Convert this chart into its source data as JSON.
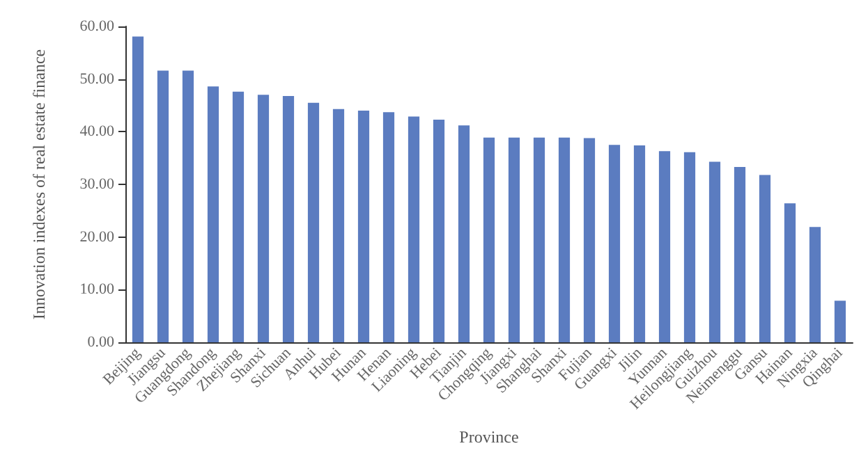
{
  "chart_data": {
    "type": "bar",
    "xlabel": "Province",
    "ylabel": "Innovation indexes of real estate finance",
    "categories": [
      "Beijing",
      "Jiangsu",
      "Guangdong",
      "Shandong",
      "Zhejiang",
      "Shanxi",
      "Sichuan",
      "Anhui",
      "Hubei",
      "Hunan",
      "Henan",
      "Liaoning",
      "Hebei",
      "Tianjin",
      "Chongqing",
      "Jiangxi",
      "Shanghai",
      "Shanxi",
      "Fujian",
      "Guangxi",
      "Jilin",
      "Yunnan",
      "Heilongjiang",
      "Guizhou",
      "Neimenggu",
      "Gansu",
      "Hainan",
      "Ningxia",
      "Qinghai"
    ],
    "values": [
      58.1,
      51.6,
      51.6,
      48.6,
      47.6,
      47.0,
      46.8,
      45.5,
      44.3,
      44.0,
      43.7,
      42.9,
      42.3,
      41.2,
      38.9,
      38.9,
      38.9,
      38.9,
      38.8,
      37.5,
      37.4,
      36.3,
      36.1,
      34.3,
      33.3,
      31.8,
      26.4,
      21.9,
      7.9
    ],
    "color": "#5b7cc0",
    "ylim": [
      0,
      60
    ],
    "yticks": [
      {
        "value": 0,
        "label": "0.00"
      },
      {
        "value": 10,
        "label": "10.00"
      },
      {
        "value": 20,
        "label": "20.00"
      },
      {
        "value": 30,
        "label": "30.00"
      },
      {
        "value": 40,
        "label": "40.00"
      },
      {
        "value": 50,
        "label": "50.00"
      },
      {
        "value": 60,
        "label": "60.00"
      }
    ],
    "grid": false
  }
}
